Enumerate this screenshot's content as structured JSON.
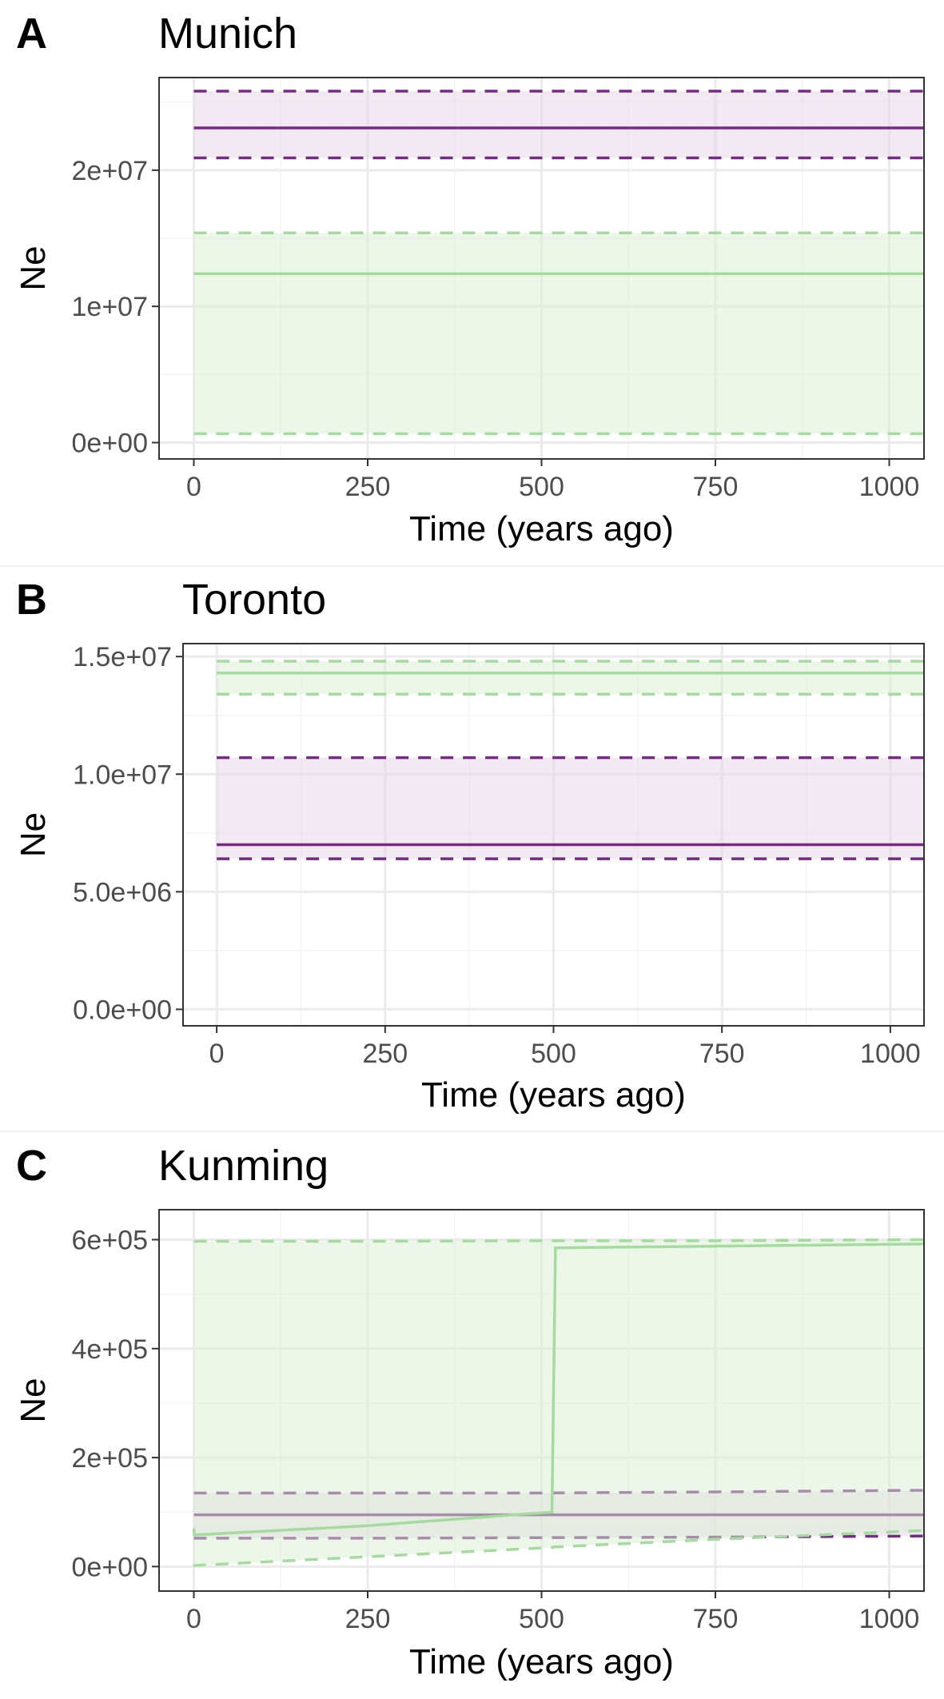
{
  "colors": {
    "purple": "#762a83",
    "purple_fill": "#e7d4e8",
    "green": "#a6dba0",
    "green_fill": "#d9f0d3",
    "grid_major": "#ebebeb",
    "grid_minor": "#f4f4f4",
    "border": "#333333",
    "tick_text": "#4d4d4d"
  },
  "chart_data": [
    {
      "type": "line",
      "letter": "A",
      "title": "Munich",
      "xlabel": "Time (years ago)",
      "ylabel": "Ne",
      "xlim": [
        -50,
        1050
      ],
      "ylim": [
        -1200000,
        26800000
      ],
      "x_ticks": [
        0,
        250,
        500,
        750,
        1000
      ],
      "x_tick_labels": [
        "0",
        "250",
        "500",
        "750",
        "1000"
      ],
      "y_ticks": [
        0,
        10000000,
        20000000
      ],
      "y_tick_labels": [
        "0e+00",
        "1e+07",
        "2e+07"
      ],
      "grid": true,
      "legend": "none",
      "series": [
        {
          "color": "purple",
          "x": [
            0,
            1050
          ],
          "median": [
            23100000,
            23100000
          ],
          "lower": [
            20900000,
            20900000
          ],
          "upper": [
            25800000,
            25800000
          ]
        },
        {
          "color": "green",
          "x": [
            0,
            1050
          ],
          "median": [
            12400000,
            12400000
          ],
          "lower": [
            650000,
            650000
          ],
          "upper": [
            15400000,
            15400000
          ]
        }
      ]
    },
    {
      "type": "line",
      "letter": "B",
      "title": "Toronto",
      "xlabel": "Time (years ago)",
      "ylabel": "Ne",
      "xlim": [
        -50,
        1050
      ],
      "ylim": [
        -700000,
        15550000
      ],
      "x_ticks": [
        0,
        250,
        500,
        750,
        1000
      ],
      "x_tick_labels": [
        "0",
        "250",
        "500",
        "750",
        "1000"
      ],
      "y_ticks": [
        0,
        5000000,
        10000000,
        15000000
      ],
      "y_tick_labels": [
        "0.0e+00",
        "5.0e+06",
        "1.0e+07",
        "1.5e+07"
      ],
      "grid": true,
      "legend": "none",
      "series": [
        {
          "color": "purple",
          "x": [
            0,
            1050
          ],
          "median": [
            7000000,
            7000000
          ],
          "lower": [
            6400000,
            6400000
          ],
          "upper": [
            10700000,
            10700000
          ]
        },
        {
          "color": "green",
          "x": [
            0,
            1050
          ],
          "median": [
            14300000,
            14300000
          ],
          "lower": [
            13400000,
            13400000
          ],
          "upper": [
            14800000,
            14800000
          ]
        }
      ]
    },
    {
      "type": "line",
      "letter": "C",
      "title": "Kunming",
      "xlabel": "Time (years ago)",
      "ylabel": "Ne",
      "xlim": [
        -50,
        1050
      ],
      "ylim": [
        -45000,
        655000
      ],
      "x_ticks": [
        0,
        250,
        500,
        750,
        1000
      ],
      "x_tick_labels": [
        "0",
        "250",
        "500",
        "750",
        "1000"
      ],
      "y_ticks": [
        0,
        200000,
        400000,
        600000
      ],
      "y_tick_labels": [
        "0e+00",
        "2e+05",
        "4e+05",
        "6e+05"
      ],
      "grid": true,
      "legend": "none",
      "series": [
        {
          "color": "purple",
          "x": [
            0,
            250,
            500,
            750,
            1050
          ],
          "median": [
            95000,
            95000,
            95000,
            95000,
            95000
          ],
          "lower": [
            52000,
            52000,
            53000,
            54000,
            56000
          ],
          "upper": [
            135000,
            135000,
            135000,
            137000,
            140000
          ]
        },
        {
          "color": "green",
          "x": [
            0,
            1,
            250,
            515,
            520,
            750,
            1050
          ],
          "median": [
            70000,
            58000,
            75000,
            100000,
            585000,
            588000,
            592000
          ],
          "lower": [
            0,
            2000,
            18000,
            35000,
            36000,
            50000,
            66000
          ],
          "upper": [
            597000,
            597000,
            597000,
            598000,
            598000,
            598000,
            600000
          ]
        }
      ]
    }
  ]
}
